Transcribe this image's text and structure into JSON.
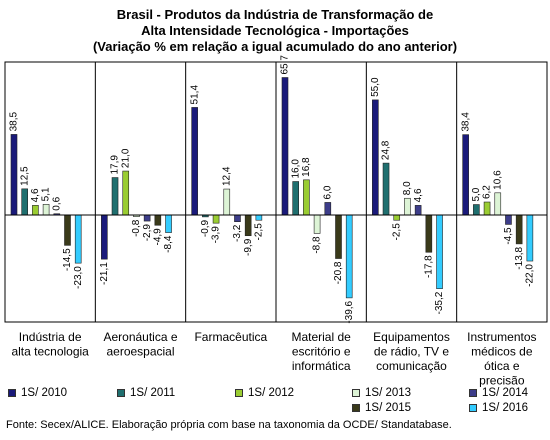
{
  "chart_data": {
    "type": "bar",
    "title": [
      "Brasil - Produtos da Indústria de Transformação de",
      "Alta Intensidade Tecnológica - Importações",
      "(Variação % em relação a igual acumulado do ano anterior)"
    ],
    "categories": [
      [
        "Indústria de",
        "alta tecnologia"
      ],
      [
        "Aeronáutica e",
        "aeroespacial"
      ],
      [
        "Farmacêutica"
      ],
      [
        "Material de",
        "escritório e",
        "informática"
      ],
      [
        "Equipamentos",
        "de rádio, TV e",
        "comunicação"
      ],
      [
        "Instrumentos",
        "médicos de",
        "ótica e",
        "precisão"
      ]
    ],
    "series": [
      {
        "name": "1S/ 2010",
        "color": "#1a1a7a",
        "values": [
          38.5,
          -21.1,
          51.4,
          65.7,
          55.0,
          38.4
        ]
      },
      {
        "name": "1S/ 2011",
        "color": "#1f6f6f",
        "values": [
          12.5,
          17.9,
          -0.9,
          16.0,
          24.8,
          5.0
        ]
      },
      {
        "name": "1S/ 2012",
        "color": "#9acd32",
        "values": [
          4.6,
          21.0,
          -3.9,
          16.8,
          -2.5,
          6.2
        ]
      },
      {
        "name": "1S/ 2013",
        "color": "#ddf4d6",
        "values": [
          5.1,
          -0.8,
          12.4,
          -8.8,
          8.0,
          10.6
        ]
      },
      {
        "name": "1S/ 2014",
        "color": "#3d3d8a",
        "values": [
          0.6,
          -2.9,
          -3.2,
          6.0,
          4.6,
          -4.5
        ]
      },
      {
        "name": "1S/ 2015",
        "color": "#3a3a1a",
        "values": [
          -14.5,
          -4.9,
          -9.9,
          -20.8,
          -17.8,
          -13.8
        ]
      },
      {
        "name": "1S/ 2016",
        "color": "#33ccff",
        "values": [
          -23.0,
          -8.4,
          -2.5,
          -39.6,
          -35.2,
          -22.0
        ]
      }
    ],
    "value_labels": [
      [
        "38,5",
        "-21,1",
        "51,4",
        "65,7",
        "55,0",
        "38,4"
      ],
      [
        "12,5",
        "17,9",
        "-0,9",
        "16,0",
        "24,8",
        "5,0"
      ],
      [
        "4,6",
        "21,0",
        "-3,9",
        "16,8",
        "-2,5",
        "6,2"
      ],
      [
        "5,1",
        "-0,8",
        "12,4",
        "-8,8",
        "8,0",
        "10,6"
      ],
      [
        "0,6",
        "-2,9",
        "-3,2",
        "6,0",
        "4,6",
        "-4,5"
      ],
      [
        "-14,5",
        "-4,9",
        "-9,9",
        "-20,8",
        "-17,8",
        "-13,8"
      ],
      [
        "-23,0",
        "-8,4",
        "-2,5",
        "-39,6",
        "-35,2",
        "-22,0"
      ]
    ],
    "ylim": [
      -44,
      70
    ],
    "xlabel": "",
    "ylabel": "",
    "grid": false,
    "legend_position": "bottom"
  },
  "footer": "Fonte: Secex/ALICE. Elaboração própria com base na taxonomia da OCDE/ Standatabase."
}
